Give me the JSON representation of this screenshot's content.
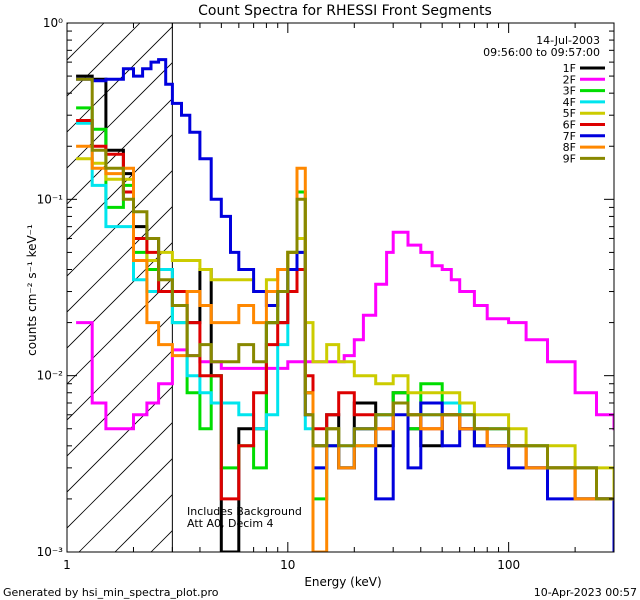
{
  "chart_data": {
    "type": "line",
    "title": "Count Spectra for RHESSI Front Segments",
    "xlabel": "Energy (keV)",
    "ylabel": "counts cm⁻² s⁻¹ keV⁻¹",
    "xscale": "log",
    "yscale": "log",
    "xlim": [
      1,
      300
    ],
    "ylim": [
      0.001,
      1
    ],
    "x_ticks": [
      "1",
      "10",
      "100"
    ],
    "y_ticks": [
      "10⁻³",
      "10⁻²",
      "10⁻¹",
      "10⁰"
    ],
    "grid": false,
    "legend_position": "top-right",
    "date": "14-Jul-2003",
    "time_range": "09:56:00 to 09:57:00",
    "annotations": [
      "Includes Background",
      "Att A0, Decim 4"
    ],
    "attenuated_region_xmax": 3,
    "series": [
      {
        "name": "1F",
        "color": "#000000",
        "x": [
          1.1,
          1.3,
          1.5,
          1.8,
          2.0,
          2.3,
          2.6,
          3.0,
          3.5,
          4.0,
          4.5,
          5.0,
          6,
          7,
          8,
          9,
          10,
          11,
          12,
          13,
          15,
          17,
          20,
          25,
          30,
          35,
          40,
          50,
          60,
          70,
          80,
          100,
          120,
          150,
          200,
          250,
          300
        ],
        "y": [
          0.5,
          0.48,
          0.19,
          0.14,
          0.07,
          0.06,
          0.04,
          0.025,
          0.02,
          0.04,
          0.01,
          0.001,
          0.005,
          0.005,
          0.02,
          0.02,
          0.03,
          0.06,
          0.008,
          0.004,
          0.006,
          0.003,
          0.007,
          0.004,
          0.008,
          0.005,
          0.004,
          0.006,
          0.005,
          0.004,
          0.004,
          0.004,
          0.003,
          0.003,
          0.003,
          0.002,
          0.002
        ]
      },
      {
        "name": "2F",
        "color": "#ff00ff",
        "x": [
          1.1,
          1.3,
          1.5,
          1.8,
          2.0,
          2.3,
          2.6,
          3.0,
          3.5,
          4.0,
          5,
          6,
          8,
          10,
          12,
          14,
          16,
          18,
          20,
          22,
          25,
          28,
          30,
          35,
          40,
          45,
          50,
          55,
          60,
          70,
          80,
          100,
          120,
          150,
          200,
          250,
          300
        ],
        "y": [
          0.02,
          0.007,
          0.005,
          0.005,
          0.006,
          0.007,
          0.009,
          0.014,
          0.013,
          0.012,
          0.011,
          0.011,
          0.011,
          0.012,
          0.012,
          0.012,
          0.012,
          0.013,
          0.016,
          0.022,
          0.033,
          0.05,
          0.065,
          0.055,
          0.05,
          0.042,
          0.04,
          0.035,
          0.03,
          0.025,
          0.021,
          0.02,
          0.016,
          0.012,
          0.008,
          0.006,
          0.005
        ]
      },
      {
        "name": "3F",
        "color": "#00dd00",
        "x": [
          1.1,
          1.3,
          1.5,
          1.8,
          2.0,
          2.3,
          2.6,
          3.0,
          3.5,
          4.0,
          4.5,
          5.0,
          6,
          7,
          8,
          9,
          10,
          11,
          12,
          13,
          15,
          17,
          20,
          25,
          30,
          35,
          40,
          50,
          60,
          70,
          80,
          100,
          120,
          150,
          200,
          250,
          300
        ],
        "y": [
          0.33,
          0.25,
          0.09,
          0.12,
          0.05,
          0.04,
          0.03,
          0.02,
          0.008,
          0.005,
          0.01,
          0.003,
          0.004,
          0.003,
          0.02,
          0.03,
          0.05,
          0.11,
          0.008,
          0.002,
          0.004,
          0.003,
          0.004,
          0.006,
          0.008,
          0.005,
          0.009,
          0.007,
          0.006,
          0.005,
          0.005,
          0.004,
          0.004,
          0.003,
          0.002,
          0.002,
          0.002
        ]
      },
      {
        "name": "4F",
        "color": "#00e5ee",
        "x": [
          1.1,
          1.3,
          1.5,
          1.8,
          2.0,
          2.3,
          2.6,
          3.0,
          3.5,
          4.0,
          4.5,
          5.0,
          6,
          7,
          8,
          9,
          10,
          11,
          12,
          13,
          15,
          17,
          20,
          25,
          30,
          35,
          40,
          50,
          60,
          70,
          80,
          100,
          120,
          150,
          200,
          250,
          300
        ],
        "y": [
          0.27,
          0.12,
          0.07,
          0.07,
          0.035,
          0.03,
          0.04,
          0.02,
          0.01,
          0.008,
          0.007,
          0.007,
          0.006,
          0.005,
          0.006,
          0.015,
          0.03,
          0.05,
          0.005,
          0.003,
          0.005,
          0.004,
          0.005,
          0.006,
          0.007,
          0.006,
          0.006,
          0.007,
          0.006,
          0.005,
          0.005,
          0.004,
          0.004,
          0.003,
          0.003,
          0.002,
          0.002
        ]
      },
      {
        "name": "5F",
        "color": "#cccc00",
        "x": [
          1.1,
          1.3,
          1.5,
          1.8,
          2.0,
          2.3,
          2.6,
          3.0,
          3.5,
          4.0,
          4.5,
          5.0,
          6,
          7,
          8,
          9,
          10,
          11,
          12,
          13,
          15,
          17,
          20,
          25,
          30,
          35,
          40,
          50,
          60,
          70,
          80,
          100,
          120,
          150,
          200,
          250,
          300
        ],
        "y": [
          0.17,
          0.16,
          0.13,
          0.13,
          0.06,
          0.045,
          0.05,
          0.045,
          0.045,
          0.04,
          0.035,
          0.035,
          0.035,
          0.03,
          0.035,
          0.04,
          0.05,
          0.06,
          0.02,
          0.012,
          0.015,
          0.012,
          0.01,
          0.009,
          0.01,
          0.008,
          0.008,
          0.008,
          0.007,
          0.006,
          0.006,
          0.005,
          0.004,
          0.004,
          0.003,
          0.003,
          0.002
        ]
      },
      {
        "name": "6F",
        "color": "#dd0000",
        "x": [
          1.1,
          1.3,
          1.5,
          1.8,
          2.0,
          2.3,
          2.6,
          3.0,
          3.5,
          4.0,
          4.5,
          5.0,
          6,
          7,
          8,
          9,
          10,
          11,
          12,
          13,
          15,
          17,
          20,
          25,
          30,
          35,
          40,
          50,
          60,
          70,
          80,
          100,
          120,
          150,
          200,
          250,
          300
        ],
        "y": [
          0.28,
          0.2,
          0.18,
          0.11,
          0.06,
          0.05,
          0.03,
          0.03,
          0.02,
          0.01,
          0.01,
          0.002,
          0.004,
          0.008,
          0.015,
          0.02,
          0.03,
          0.04,
          0.01,
          0.005,
          0.006,
          0.008,
          0.006,
          0.005,
          0.007,
          0.006,
          0.005,
          0.006,
          0.005,
          0.005,
          0.004,
          0.004,
          0.003,
          0.003,
          0.002,
          0.002,
          0.001
        ]
      },
      {
        "name": "7F",
        "color": "#0000dd",
        "x": [
          1.1,
          1.3,
          1.5,
          1.8,
          2.0,
          2.2,
          2.4,
          2.6,
          2.8,
          3.0,
          3.3,
          3.6,
          4.0,
          4.5,
          5.0,
          5.5,
          6,
          7,
          8,
          9,
          10,
          11,
          12,
          13,
          15,
          17,
          20,
          25,
          30,
          35,
          40,
          50,
          60,
          70,
          80,
          100,
          120,
          150,
          200,
          250,
          300
        ],
        "y": [
          0.48,
          0.47,
          0.48,
          0.55,
          0.5,
          0.55,
          0.6,
          0.62,
          0.45,
          0.35,
          0.3,
          0.24,
          0.17,
          0.1,
          0.08,
          0.05,
          0.04,
          0.03,
          0.025,
          0.03,
          0.04,
          0.05,
          0.006,
          0.003,
          0.004,
          0.003,
          0.005,
          0.002,
          0.006,
          0.003,
          0.007,
          0.004,
          0.005,
          0.004,
          0.004,
          0.003,
          0.003,
          0.002,
          0.002,
          0.002,
          0.001
        ]
      },
      {
        "name": "8F",
        "color": "#ff8800",
        "x": [
          1.1,
          1.3,
          1.5,
          1.8,
          2.0,
          2.3,
          2.6,
          3.0,
          3.5,
          4.0,
          4.5,
          5.0,
          6,
          7,
          8,
          9,
          10,
          11,
          12,
          13,
          15,
          17,
          20,
          25,
          30,
          35,
          40,
          50,
          60,
          70,
          80,
          100,
          120,
          150,
          200,
          250,
          300
        ],
        "y": [
          0.2,
          0.15,
          0.14,
          0.15,
          0.045,
          0.02,
          0.015,
          0.013,
          0.03,
          0.025,
          0.02,
          0.02,
          0.025,
          0.02,
          0.03,
          0.04,
          0.05,
          0.15,
          0.008,
          0.001,
          0.005,
          0.003,
          0.004,
          0.005,
          0.007,
          0.006,
          0.005,
          0.006,
          0.005,
          0.005,
          0.004,
          0.004,
          0.003,
          0.003,
          0.002,
          0.002,
          0.002
        ]
      },
      {
        "name": "9F",
        "color": "#888800",
        "x": [
          1.1,
          1.3,
          1.5,
          1.8,
          2.0,
          2.3,
          2.6,
          3.0,
          3.5,
          4.0,
          4.5,
          5.0,
          6,
          7,
          8,
          9,
          10,
          11,
          12,
          13,
          15,
          17,
          20,
          25,
          30,
          35,
          40,
          50,
          60,
          70,
          80,
          100,
          120,
          150,
          200,
          250,
          300
        ],
        "y": [
          0.48,
          0.19,
          0.15,
          0.1,
          0.085,
          0.06,
          0.035,
          0.025,
          0.013,
          0.015,
          0.012,
          0.012,
          0.015,
          0.012,
          0.02,
          0.03,
          0.05,
          0.1,
          0.006,
          0.004,
          0.005,
          0.004,
          0.005,
          0.006,
          0.007,
          0.006,
          0.006,
          0.006,
          0.006,
          0.005,
          0.005,
          0.004,
          0.004,
          0.003,
          0.003,
          0.002,
          0.002
        ]
      }
    ]
  },
  "footer": {
    "left": "Generated by hsi_min_spectra_plot.pro",
    "right": "10-Apr-2023 00:57"
  }
}
